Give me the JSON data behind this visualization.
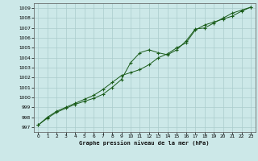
{
  "title": "Graphe pression niveau de la mer (hPa)",
  "background_color": "#cce8e8",
  "grid_color": "#aacccc",
  "line_color": "#1a5c1a",
  "marker_color": "#1a5c1a",
  "xlim": [
    -0.5,
    23.5
  ],
  "ylim": [
    996.5,
    1009.5
  ],
  "xticks": [
    0,
    1,
    2,
    3,
    4,
    5,
    6,
    7,
    8,
    9,
    10,
    11,
    12,
    13,
    14,
    15,
    16,
    17,
    18,
    19,
    20,
    21,
    22,
    23
  ],
  "yticks": [
    997,
    998,
    999,
    1000,
    1001,
    1002,
    1003,
    1004,
    1005,
    1006,
    1007,
    1008,
    1009
  ],
  "series1": [
    [
      0,
      997.2
    ],
    [
      1,
      997.9
    ],
    [
      2,
      998.5
    ],
    [
      3,
      998.9
    ],
    [
      4,
      999.3
    ],
    [
      5,
      999.6
    ],
    [
      6,
      999.9
    ],
    [
      7,
      1000.3
    ],
    [
      8,
      1001.0
    ],
    [
      9,
      1001.8
    ],
    [
      10,
      1003.5
    ],
    [
      11,
      1004.5
    ],
    [
      12,
      1004.8
    ],
    [
      13,
      1004.5
    ],
    [
      14,
      1004.3
    ],
    [
      15,
      1004.8
    ],
    [
      16,
      1005.7
    ],
    [
      17,
      1006.9
    ],
    [
      18,
      1007.0
    ],
    [
      19,
      1007.5
    ],
    [
      20,
      1008.0
    ],
    [
      21,
      1008.5
    ],
    [
      22,
      1008.8
    ],
    [
      23,
      1009.1
    ]
  ],
  "series2": [
    [
      0,
      997.2
    ],
    [
      1,
      998.0
    ],
    [
      2,
      998.6
    ],
    [
      3,
      999.0
    ],
    [
      4,
      999.4
    ],
    [
      5,
      999.8
    ],
    [
      6,
      1000.2
    ],
    [
      7,
      1000.8
    ],
    [
      8,
      1001.5
    ],
    [
      9,
      1002.2
    ],
    [
      10,
      1002.5
    ],
    [
      11,
      1002.8
    ],
    [
      12,
      1003.3
    ],
    [
      13,
      1004.0
    ],
    [
      14,
      1004.4
    ],
    [
      15,
      1005.0
    ],
    [
      16,
      1005.5
    ],
    [
      17,
      1006.8
    ],
    [
      18,
      1007.3
    ],
    [
      19,
      1007.6
    ],
    [
      20,
      1007.9
    ],
    [
      21,
      1008.2
    ],
    [
      22,
      1008.7
    ],
    [
      23,
      1009.1
    ]
  ]
}
